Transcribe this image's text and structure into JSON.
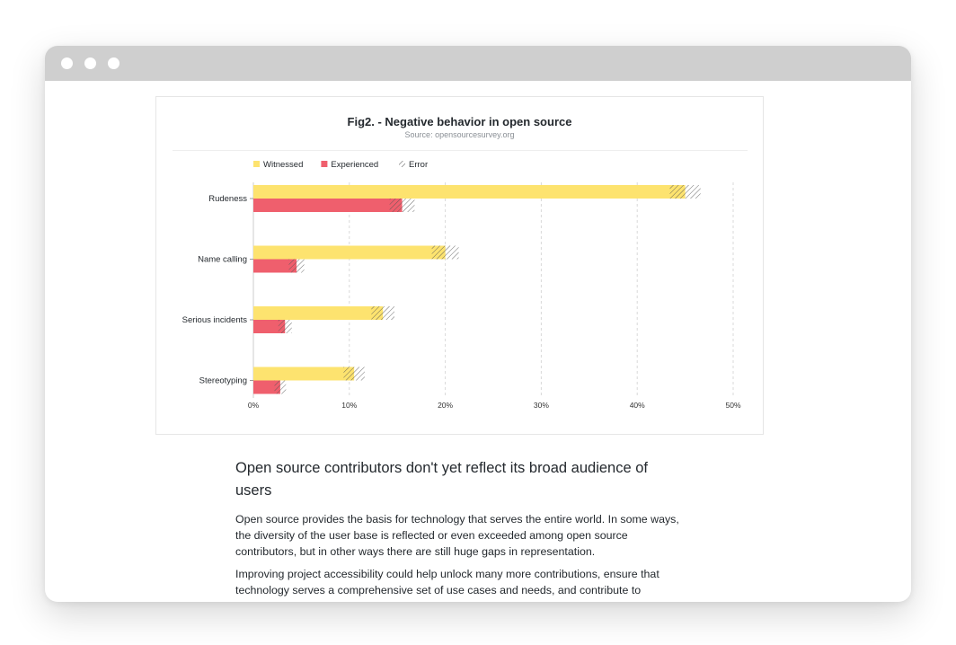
{
  "figure": {
    "title": "Fig2. - Negative behavior in open source",
    "source": "Source: opensourcesurvey.org"
  },
  "chart_data": {
    "type": "bar",
    "orientation": "horizontal",
    "categories": [
      "Rudeness",
      "Name calling",
      "Serious incidents",
      "Stereotyping"
    ],
    "series": [
      {
        "name": "Witnessed",
        "color": "#fde36f",
        "values": [
          45,
          20,
          13.5,
          10.5
        ],
        "error": [
          1.6,
          1.4,
          1.2,
          1.1
        ]
      },
      {
        "name": "Experienced",
        "color": "#ef5f6d",
        "values": [
          15.5,
          4.5,
          3.3,
          2.8
        ],
        "error": [
          1.3,
          0.8,
          0.7,
          0.6
        ]
      }
    ],
    "legend": [
      {
        "label": "Witnessed",
        "swatch": "#fde36f"
      },
      {
        "label": "Experienced",
        "swatch": "#ef5f6d"
      },
      {
        "label": "Error",
        "swatch": "hatched"
      }
    ],
    "legend_position": "top-left",
    "xlim": [
      0,
      50
    ],
    "xticks": [
      "0%",
      "10%",
      "20%",
      "30%",
      "40%",
      "50%"
    ],
    "grid": "vertical-dashed"
  },
  "article": {
    "heading": "Open source contributors don't yet reflect its broad audience of users",
    "paragraph1": "Open source provides the basis for technology that serves the entire world. In some ways, the diversity of the user base is reflected or even exceeded among open source contributors, but in other ways there are still huge gaps in representation.",
    "paragraph2": "Improving project accessibility could help unlock many more contributions, ensure that technology serves a comprehensive set of use cases and needs, and contribute to"
  }
}
